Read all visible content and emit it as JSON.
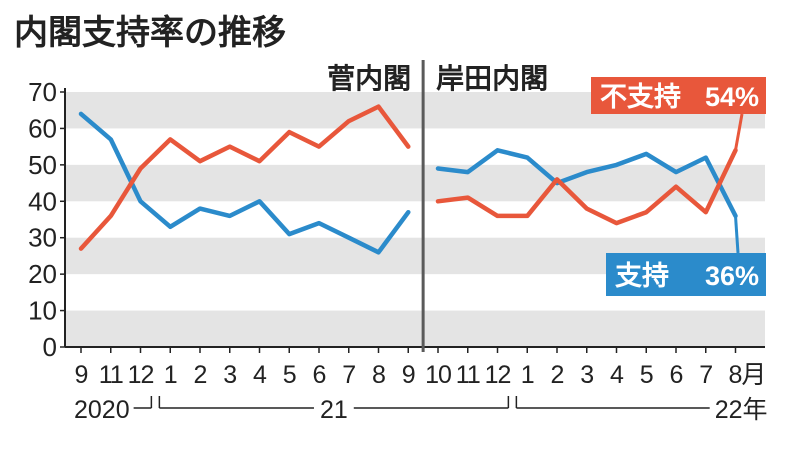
{
  "chart_data": {
    "type": "line",
    "title": "内閣支持率の推移",
    "ylim": [
      0,
      70
    ],
    "yticks": [
      0,
      10,
      20,
      30,
      40,
      50,
      60,
      70
    ],
    "grid": true,
    "panels": [
      "菅内閣",
      "岸田内閣"
    ],
    "categories": [
      [
        "9",
        "11",
        "12",
        "1",
        "2",
        "3",
        "4",
        "5",
        "6",
        "7",
        "8",
        "9"
      ],
      [
        "10",
        "11",
        "12",
        "1",
        "2",
        "3",
        "4",
        "5",
        "6",
        "7",
        "8月"
      ]
    ],
    "year_labels": [
      "2020",
      "21",
      "22年"
    ],
    "series": [
      {
        "name": "支持",
        "end_label": "36%",
        "color": "#2b8bcb",
        "values": [
          [
            64,
            57,
            40,
            33,
            38,
            36,
            40,
            31,
            34,
            30,
            26,
            37
          ],
          [
            49,
            48,
            54,
            52,
            45,
            48,
            50,
            53,
            48,
            52,
            36
          ]
        ]
      },
      {
        "name": "不支持",
        "end_label": "54%",
        "color": "#e8573b",
        "values": [
          [
            27,
            36,
            49,
            57,
            51,
            55,
            51,
            59,
            55,
            62,
            66,
            55
          ],
          [
            40,
            41,
            36,
            36,
            46,
            38,
            34,
            37,
            44,
            37,
            54
          ]
        ]
      }
    ]
  },
  "colors": {
    "text": "#222222",
    "band": "#e4e4e4",
    "divider": "#5a5a5a"
  }
}
